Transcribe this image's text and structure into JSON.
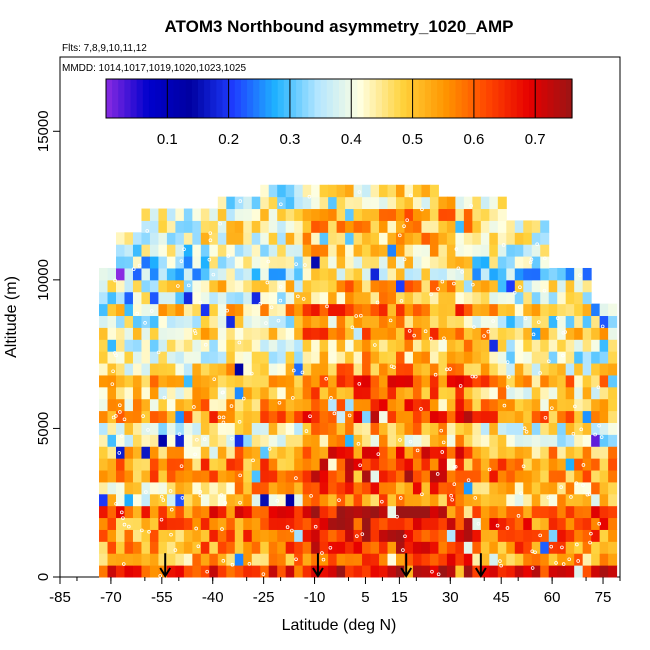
{
  "chart_data": {
    "type": "heatmap",
    "title": "ATOM3 Northbound asymmetry_1020_AMP",
    "flights_label": "Flts: 7,8,9,10,11,12",
    "dates_label": "MMDD: 1014,1017,1019,1020,1023,1025",
    "xlabel": "Latitude (deg N)",
    "ylabel": "Altitude (m)",
    "xlim": [
      -85,
      80
    ],
    "ylim": [
      0,
      17500
    ],
    "x_ticks": [
      "-85",
      "-70",
      "-55",
      "-40",
      "-25",
      "-10",
      "5",
      "15",
      "30",
      "45",
      "60",
      "75"
    ],
    "y_ticks": [
      "0",
      "5000",
      "10000",
      "15000"
    ],
    "colorbar": {
      "range": [
        0.0,
        0.76
      ],
      "ticks": [
        "0.1",
        "0.2",
        "0.3",
        "0.4",
        "0.5",
        "0.6",
        "0.7"
      ],
      "colors": [
        "#8a2be2",
        "#0000cd",
        "#0000a0",
        "#1e3cff",
        "#1fb2ff",
        "#b4e6ff",
        "#ffffe0",
        "#ffd23c",
        "#ff9600",
        "#ff4600",
        "#e60000",
        "#9b1414"
      ]
    },
    "series_note": "curtain of asymmetry values by latitude and altitude",
    "profile_markers": [
      -54,
      -9,
      17,
      39
    ],
    "grid": false,
    "legend": "colorbar-top"
  }
}
